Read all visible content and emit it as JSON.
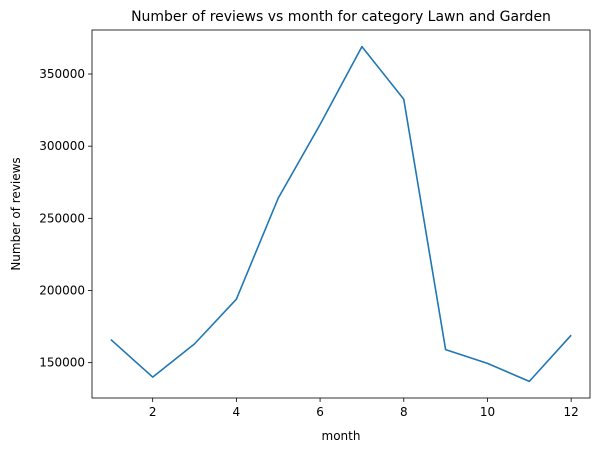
{
  "chart_data": {
    "type": "line",
    "title": "Number of reviews vs month for category Lawn and Garden",
    "xlabel": "month",
    "ylabel": "Number of reviews",
    "xlim": [
      0.55,
      12.45
    ],
    "ylim": [
      125500,
      380500
    ],
    "x_ticks": [
      2,
      4,
      6,
      8,
      10,
      12
    ],
    "x_tick_labels": [
      "2",
      "4",
      "6",
      "8",
      "10",
      "12"
    ],
    "y_ticks": [
      150000,
      200000,
      250000,
      300000,
      350000
    ],
    "y_tick_labels": [
      "150000",
      "200000",
      "250000",
      "300000",
      "350000"
    ],
    "grid": false,
    "series": [
      {
        "color": "#1f77b4",
        "x": [
          1,
          2,
          3,
          4,
          5,
          6,
          7,
          8,
          9,
          10,
          11,
          12
        ],
        "y": [
          166000,
          140000,
          163000,
          194000,
          264000,
          315000,
          369000,
          332500,
          159000,
          149500,
          137000,
          169000
        ]
      }
    ]
  }
}
